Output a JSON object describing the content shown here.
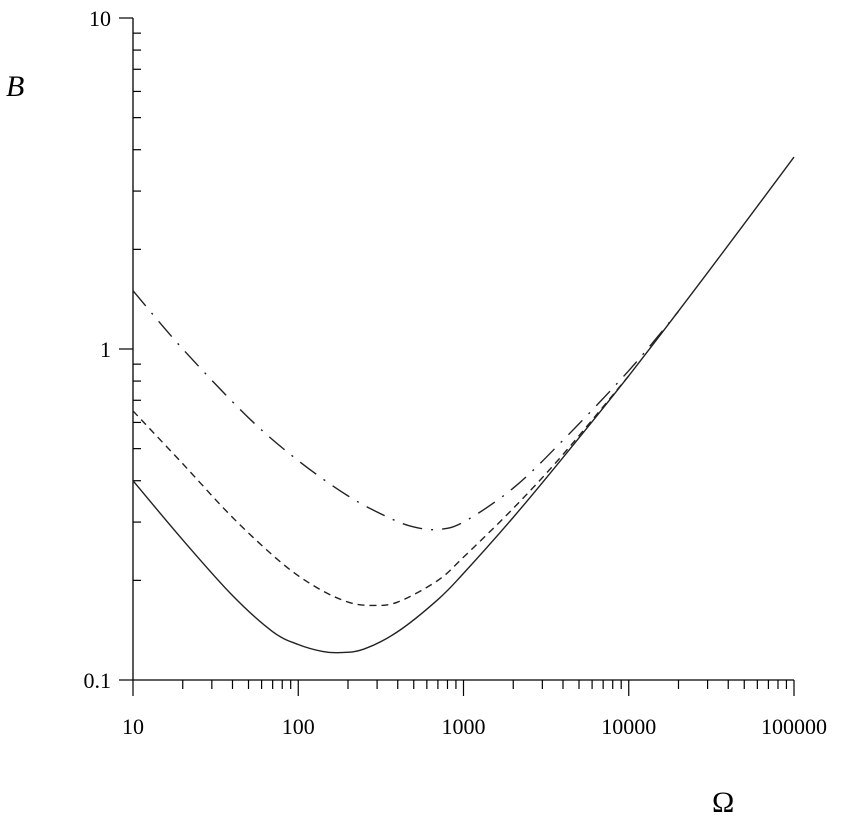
{
  "chart_data": {
    "type": "line",
    "xscale": "log",
    "yscale": "log",
    "xlim": [
      10,
      100000
    ],
    "ylim": [
      0.1,
      10
    ],
    "xlabel": "Ω",
    "ylabel": "B",
    "x_tick_labels": [
      "10",
      "100",
      "1000",
      "10000",
      "100000"
    ],
    "x_ticks": [
      10,
      100,
      1000,
      10000,
      100000
    ],
    "y_tick_labels": [
      "0.1",
      "1",
      "10"
    ],
    "y_ticks": [
      0.1,
      1,
      10
    ],
    "grid": false,
    "series": [
      {
        "style": "solid",
        "x": [
          10,
          20,
          40,
          70,
          100,
          140,
          180,
          250,
          400,
          700,
          1000,
          2000,
          4000,
          10000,
          30000,
          100000
        ],
        "y": [
          0.4,
          0.265,
          0.18,
          0.14,
          0.128,
          0.122,
          0.121,
          0.124,
          0.14,
          0.175,
          0.21,
          0.31,
          0.47,
          0.83,
          1.7,
          3.8
        ]
      },
      {
        "style": "dashed",
        "x": [
          10,
          20,
          40,
          80,
          130,
          200,
          280,
          400,
          700,
          1000,
          2000,
          4000,
          10000
        ],
        "y": [
          0.65,
          0.45,
          0.31,
          0.225,
          0.19,
          0.172,
          0.168,
          0.172,
          0.2,
          0.235,
          0.33,
          0.48,
          0.83
        ]
      },
      {
        "style": "dash-dot",
        "x": [
          10,
          20,
          50,
          100,
          200,
          350,
          500,
          700,
          1000,
          2000,
          4000,
          10000,
          20000
        ],
        "y": [
          1.5,
          1.0,
          0.62,
          0.46,
          0.36,
          0.31,
          0.29,
          0.285,
          0.3,
          0.38,
          0.53,
          0.86,
          1.3
        ]
      }
    ]
  }
}
